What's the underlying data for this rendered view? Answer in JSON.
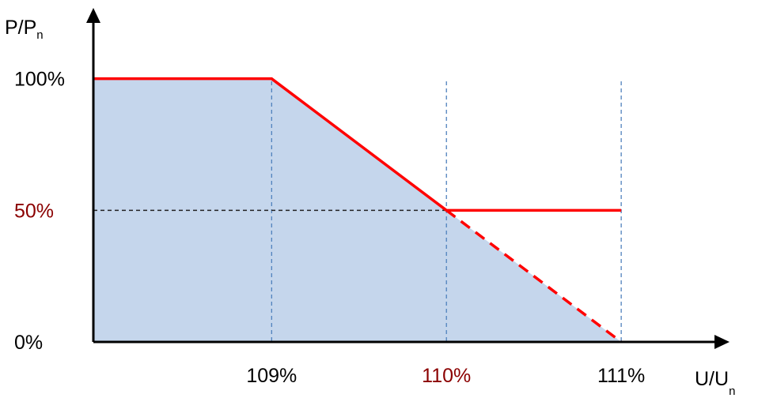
{
  "chart_data": {
    "type": "line",
    "title": "",
    "xlabel": "U/U",
    "xlabel_subscript": "n",
    "ylabel": "P/P",
    "ylabel_subscript": "n",
    "x_ticks": [
      {
        "value": 109,
        "label": "109%",
        "color": "#000000"
      },
      {
        "value": 110,
        "label": "110%",
        "color": "#8b0000"
      },
      {
        "value": 111,
        "label": "111%",
        "color": "#000000"
      }
    ],
    "y_ticks": [
      {
        "value": 100,
        "label": "100%",
        "color": "#000000"
      },
      {
        "value": 50,
        "label": "50%",
        "color": "#8b0000"
      },
      {
        "value": 0,
        "label": "0%",
        "color": "#000000"
      }
    ],
    "series": [
      {
        "style": "solid",
        "color": "#ff0000",
        "points": [
          [
            107.98,
            100
          ],
          [
            109,
            100
          ],
          [
            110,
            50
          ],
          [
            111,
            50
          ]
        ]
      },
      {
        "style": "dashed",
        "color": "#ff0000",
        "points": [
          [
            110,
            50
          ],
          [
            111,
            0
          ]
        ]
      }
    ],
    "filled_region": {
      "color": "#c5d6ec",
      "points": [
        [
          107.98,
          100
        ],
        [
          109,
          100
        ],
        [
          111,
          0
        ],
        [
          107.98,
          0
        ]
      ]
    },
    "guides": {
      "horizontal": [
        {
          "y": 50,
          "from_x": 107.98,
          "to_x": 110,
          "color": "#222222"
        }
      ],
      "vertical": [
        {
          "x": 109,
          "color": "#4f81bd"
        },
        {
          "x": 110,
          "color": "#4f81bd"
        },
        {
          "x": 111,
          "color": "#4f81bd"
        }
      ]
    },
    "xlim": [
      107.98,
      111.52
    ],
    "ylim": [
      0,
      120
    ],
    "grid": false,
    "legend": "none"
  }
}
